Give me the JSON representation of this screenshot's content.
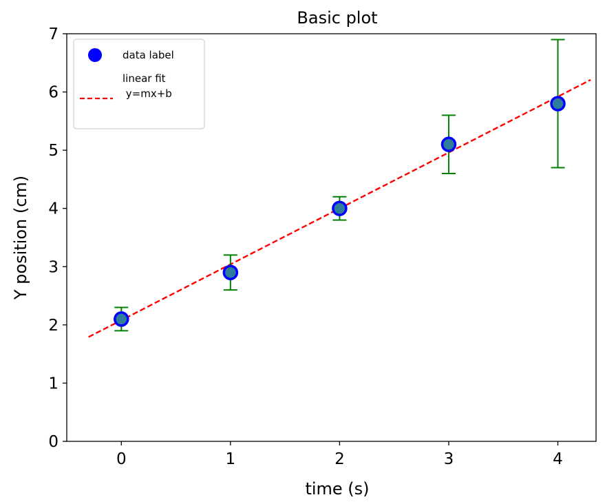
{
  "chart_data": {
    "type": "scatter",
    "title": "Basic plot",
    "xlabel": "time (s)",
    "ylabel": "Y position (cm)",
    "xlim": [
      -0.5,
      4.35
    ],
    "ylim": [
      0,
      7
    ],
    "x_ticks": [
      0,
      1,
      2,
      3,
      4
    ],
    "y_ticks": [
      0,
      1,
      2,
      3,
      4,
      5,
      6,
      7
    ],
    "grid": false,
    "legend_position": "top-left",
    "series": [
      {
        "name": "data label",
        "type": "scatter",
        "marker_fill": "#2e7d9a",
        "marker_edge": "#0000ff",
        "error_color": "#008000",
        "points": [
          {
            "x": 0,
            "y": 2.1,
            "err": 0.2
          },
          {
            "x": 1,
            "y": 2.9,
            "err": 0.3
          },
          {
            "x": 2,
            "y": 4.0,
            "err": 0.2
          },
          {
            "x": 3,
            "y": 5.1,
            "err": 0.5
          },
          {
            "x": 4,
            "y": 5.8,
            "err": 1.1
          }
        ]
      },
      {
        "name": "linear fit\n y=mx+b",
        "name_lines": [
          "linear fit",
          " y=mx+b"
        ],
        "type": "line",
        "style": "dashed",
        "color": "#ff0000",
        "slope": 0.96,
        "intercept": 2.08,
        "x_range": [
          -0.3,
          4.3
        ]
      }
    ]
  }
}
